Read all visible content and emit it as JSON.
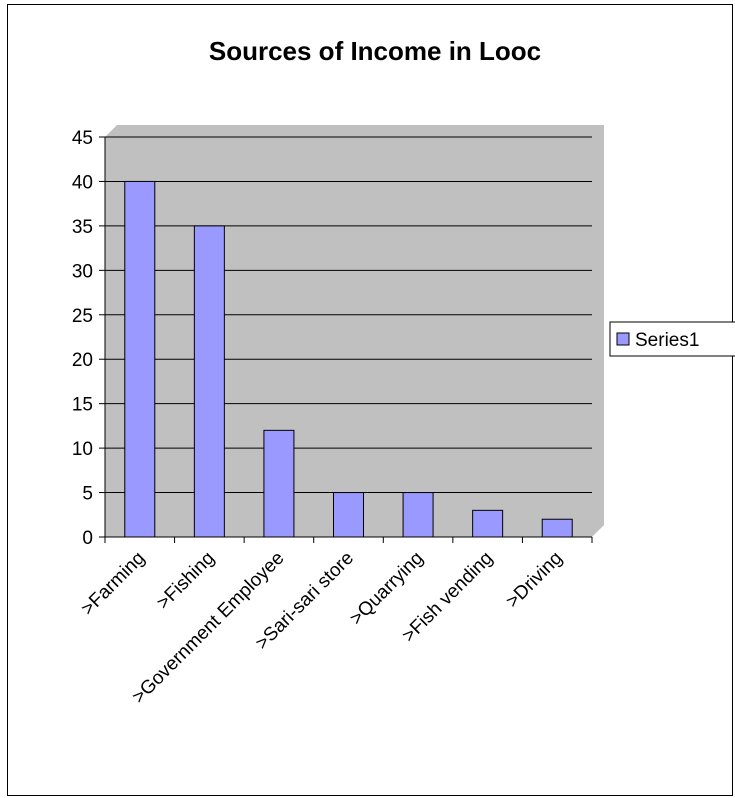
{
  "chart_data": {
    "type": "bar",
    "title": "Sources of Income in Looc",
    "xlabel": "",
    "ylabel": "",
    "categories": [
      ">Farming",
      ">Fishing",
      ">Government Employee",
      ">Sari-sari store",
      ">Quarrying",
      ">Fish vending",
      ">Driving"
    ],
    "series": [
      {
        "name": "Series1",
        "values": [
          40,
          35,
          12,
          5,
          5,
          3,
          2
        ],
        "color": "#9999ff"
      }
    ],
    "ylim": [
      0,
      45
    ],
    "yticks": [
      "0",
      "5",
      "10",
      "15",
      "20",
      "25",
      "30",
      "35",
      "40",
      "45"
    ],
    "grid": true,
    "legend_position": "right",
    "plot_background": "#c0c0c0"
  }
}
